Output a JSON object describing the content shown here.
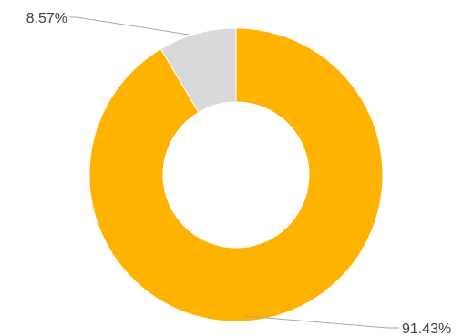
{
  "chart_data": {
    "type": "pie",
    "variant": "donut",
    "title": "",
    "categories": [
      "",
      ""
    ],
    "values": [
      91.43,
      8.57
    ],
    "data_labels": [
      "91.43%",
      "8.57%"
    ],
    "colors": [
      "#FFB300",
      "#D9D9D9"
    ],
    "legend": "none",
    "start_angle": "top",
    "direction": "clockwise"
  }
}
